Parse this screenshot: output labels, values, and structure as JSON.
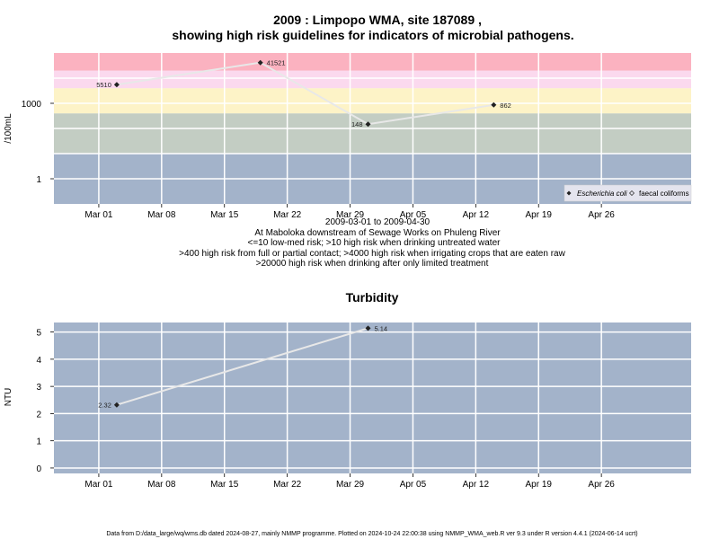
{
  "chart_data": [
    {
      "type": "line",
      "title": "2009 : Limpopo WMA, site 187089 ,",
      "title2": "showing high risk guidelines for indicators of microbial pathogens.",
      "ylabel": "/100mL",
      "yscale": "log",
      "xlim": [
        "2009-02-24",
        "2009-05-06"
      ],
      "ylim": [
        0.1,
        100000
      ],
      "x_ticks": [
        {
          "date": "2009-03-01",
          "label": "Mar 01"
        },
        {
          "date": "2009-03-08",
          "label": "Mar 08"
        },
        {
          "date": "2009-03-15",
          "label": "Mar 15"
        },
        {
          "date": "2009-03-22",
          "label": "Mar 22"
        },
        {
          "date": "2009-03-29",
          "label": "Mar 29"
        },
        {
          "date": "2009-04-05",
          "label": "Apr 05"
        },
        {
          "date": "2009-04-12",
          "label": "Apr 12"
        },
        {
          "date": "2009-04-19",
          "label": "Apr 19"
        },
        {
          "date": "2009-04-26",
          "label": "Apr 26"
        }
      ],
      "y_ticks": [
        {
          "value": 1,
          "label": "1"
        },
        {
          "value": 1000,
          "label": "1000"
        }
      ],
      "grid": true,
      "risk_bands": [
        {
          "from": 0.1,
          "to": 10,
          "color": "#a3b3ca"
        },
        {
          "from": 10,
          "to": 400,
          "color": "#c3cdc3"
        },
        {
          "from": 400,
          "to": 4000,
          "color": "#fdf3c7"
        },
        {
          "from": 4000,
          "to": 20000,
          "color": "#fbd9ee"
        },
        {
          "from": 20000,
          "to": 100000,
          "color": "#fbb2c0"
        }
      ],
      "series": [
        {
          "name": "Escherichia coli",
          "marker": "filled-diamond",
          "points": [
            {
              "date": "2009-03-03",
              "value": 5510,
              "label": "5510"
            },
            {
              "date": "2009-03-19",
              "value": 41521,
              "label": "41521"
            },
            {
              "date": "2009-03-31",
              "value": 148,
              "label": "148"
            },
            {
              "date": "2009-04-14",
              "value": 862,
              "label": "862"
            }
          ]
        },
        {
          "name": "faecal coliforms",
          "marker": "open-diamond",
          "points": []
        }
      ],
      "legend_position": "bottom-right",
      "notes": [
        "2009-03-01 to 2009-04-30",
        "At Maboloka downstream of Sewage Works on Phuleng River",
        "<=10 low-med risk; >10 high risk when drinking untreated water",
        ">400 high risk from full or partial contact; >4000 high risk when irrigating crops that are eaten raw",
        ">20000 high risk when drinking after only limited treatment"
      ]
    },
    {
      "type": "line",
      "title": "Turbidity",
      "ylabel": "NTU",
      "xlim": [
        "2009-02-24",
        "2009-05-06"
      ],
      "ylim": [
        -0.2,
        5.35
      ],
      "x_ticks": [
        {
          "date": "2009-03-01",
          "label": "Mar 01"
        },
        {
          "date": "2009-03-08",
          "label": "Mar 08"
        },
        {
          "date": "2009-03-15",
          "label": "Mar 15"
        },
        {
          "date": "2009-03-22",
          "label": "Mar 22"
        },
        {
          "date": "2009-03-29",
          "label": "Mar 29"
        },
        {
          "date": "2009-04-05",
          "label": "Apr 05"
        },
        {
          "date": "2009-04-12",
          "label": "Apr 12"
        },
        {
          "date": "2009-04-19",
          "label": "Apr 19"
        },
        {
          "date": "2009-04-26",
          "label": "Apr 26"
        }
      ],
      "y_ticks": [
        {
          "value": 0,
          "label": "0"
        },
        {
          "value": 1,
          "label": "1"
        },
        {
          "value": 2,
          "label": "2"
        },
        {
          "value": 3,
          "label": "3"
        },
        {
          "value": 4,
          "label": "4"
        },
        {
          "value": 5,
          "label": "5"
        }
      ],
      "grid": true,
      "background_color": "#a3b3ca",
      "series": [
        {
          "points": [
            {
              "date": "2009-03-03",
              "value": 2.32,
              "label": "2.32"
            },
            {
              "date": "2009-03-31",
              "value": 5.14,
              "label": "5.14"
            }
          ]
        }
      ]
    }
  ],
  "footer": "Data from D:/data_large/wq/wms.db dated 2024-08-27, mainly NMMP programme. Plotted on 2024-10-24 22:00:38 using NMMP_WMA_web.R ver 9.3 under R version 4.4.1 (2024-06-14 ucrt)"
}
